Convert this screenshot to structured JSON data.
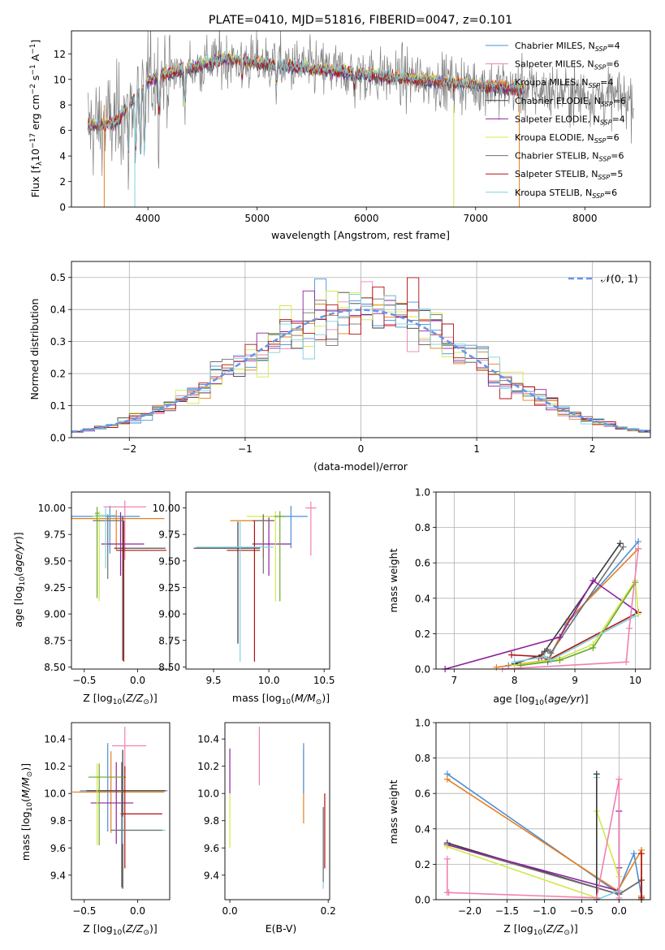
{
  "chart_data": [
    {
      "type": "line",
      "title": "PLATE=0410, MJD=51816, FIBERID=0047, z=0.101",
      "xlabel": "wavelength [Angstrom, rest frame]",
      "ylabel": "Flux [f_λ 10^-17 erg cm^-2 s^-1 A^-1]",
      "xlim": [
        3300,
        8600
      ],
      "ylim": [
        0,
        13.8
      ],
      "xticks": [
        4000,
        5000,
        6000,
        7000,
        8000
      ],
      "yticks": [
        0,
        2,
        4,
        6,
        8,
        10,
        12
      ],
      "grid": false,
      "legend_position": "top-right",
      "data_series": {
        "name": "",
        "x_range": [
          3450,
          8450
        ],
        "color": "#808080"
      },
      "model_series": [
        {
          "name": "Chabrier MILES, N_SSP=4",
          "color": "#4c8fd6"
        },
        {
          "name": "Salpeter MILES, N_SSP=6",
          "color": "#f080b0"
        },
        {
          "name": "Kroupa MILES, N_SSP=4",
          "color": "#e77f1d"
        },
        {
          "name": "Chabrier ELODIE, N_SSP=6",
          "color": "#3a3a3a"
        },
        {
          "name": "Salpeter ELODIE, N_SSP=4",
          "color": "#9020a0"
        },
        {
          "name": "Kroupa ELODIE, N_SSP=6",
          "color": "#d4e84a"
        },
        {
          "name": "Chabrier STELIB, N_SSP=6",
          "color": "#707070"
        },
        {
          "name": "Salpeter STELIB, N_SSP=5",
          "color": "#b01010"
        },
        {
          "name": "Kroupa STELIB, N_SSP=6",
          "color": "#80d0e0"
        }
      ]
    },
    {
      "type": "line",
      "title": "",
      "xlabel": "(data-model)/error",
      "ylabel": "Normed distribution",
      "xlim": [
        -2.5,
        2.5
      ],
      "ylim": [
        0,
        0.55
      ],
      "xticks": [
        -2,
        -1,
        0,
        1,
        2
      ],
      "yticks": [
        0.0,
        0.1,
        0.2,
        0.3,
        0.4,
        0.5
      ],
      "grid": true,
      "legend_position": "top-right",
      "reference": {
        "name": "𝒩(0, 1)",
        "color": "#6495ed",
        "mean": 0,
        "sigma": 1
      }
    },
    {
      "type": "scatter",
      "title": "",
      "xlabel": "Z [log10(Z/Z⊙)]",
      "ylabel": "age  [log10(age/yr)]",
      "xlim": [
        -0.62,
        0.3
      ],
      "ylim": [
        8.48,
        10.15
      ],
      "xticks": [
        -0.5,
        0.0
      ],
      "yticks": [
        8.5,
        8.75,
        9.0,
        9.25,
        9.5,
        9.75,
        10.0
      ],
      "error_points": [
        {
          "color": "#4c8fd6",
          "x": -0.26,
          "y": 9.92,
          "xerr": [
            0.54,
            0.28
          ],
          "yerr": [
            0.35,
            0.1
          ]
        },
        {
          "color": "#f080b0",
          "x": -0.12,
          "y": 10.01,
          "xerr": [
            0.2,
            0.2
          ],
          "yerr": [
            0.5,
            0.06
          ]
        },
        {
          "color": "#e77f1d",
          "x": -0.2,
          "y": 9.9,
          "xerr": [
            0.42,
            0.45
          ],
          "yerr": [
            0.3,
            0.08
          ]
        },
        {
          "color": "#3a3a3a",
          "x": -0.14,
          "y": 9.62,
          "xerr": [
            0.08,
            0.4
          ],
          "yerr": [
            1.06,
            0.3
          ]
        },
        {
          "color": "#9020a0",
          "x": -0.16,
          "y": 9.66,
          "xerr": [
            0.18,
            0.22
          ],
          "yerr": [
            0.3,
            0.3
          ]
        },
        {
          "color": "#d4e84a",
          "x": -0.36,
          "y": 9.92,
          "xerr": [
            0.06,
            0.06
          ],
          "yerr": [
            0.8,
            0.05
          ]
        },
        {
          "color": "#707070",
          "x": -0.28,
          "y": 9.88,
          "xerr": [
            0.14,
            0.14
          ],
          "yerr": [
            0.55,
            0.06
          ]
        },
        {
          "color": "#b01010",
          "x": -0.13,
          "y": 9.6,
          "xerr": [
            0.07,
            0.4
          ],
          "yerr": [
            1.05,
            0.28
          ]
        },
        {
          "color": "#80d0e0",
          "x": -0.3,
          "y": 9.93,
          "xerr": [
            0.1,
            0.1
          ],
          "yerr": [
            0.5,
            0.07
          ]
        },
        {
          "color": "#6aa830",
          "x": -0.38,
          "y": 9.95,
          "xerr": [
            0.02,
            0.02
          ],
          "yerr": [
            0.8,
            0.06
          ]
        }
      ]
    },
    {
      "type": "scatter",
      "title": "",
      "xlabel": "mass [log10(M/M⊙)]",
      "ylabel": "",
      "xlim": [
        9.25,
        10.55
      ],
      "ylim": [
        8.48,
        10.15
      ],
      "xticks": [
        9.5,
        10.0,
        10.5
      ],
      "yticks": [
        8.5,
        8.75,
        9.0,
        9.25,
        9.5,
        9.75,
        10.0
      ],
      "error_points": [
        {
          "color": "#4c8fd6",
          "x": 10.2,
          "y": 9.92,
          "xerr": [
            0.2,
            0.15
          ],
          "yerr": [
            0.3,
            0.1
          ]
        },
        {
          "color": "#f080b0",
          "x": 10.38,
          "y": 10.0,
          "xerr": [
            0.05,
            0.05
          ],
          "yerr": [
            0.45,
            0.06
          ]
        },
        {
          "color": "#e77f1d",
          "x": 9.95,
          "y": 9.88,
          "xerr": [
            0.3,
            0.1
          ],
          "yerr": [
            0.35,
            0.06
          ]
        },
        {
          "color": "#3a3a3a",
          "x": 9.72,
          "y": 9.62,
          "xerr": [
            0.4,
            0.2
          ],
          "yerr": [
            0.9,
            0.25
          ]
        },
        {
          "color": "#9020a0",
          "x": 10.0,
          "y": 9.66,
          "xerr": [
            0.15,
            0.2
          ],
          "yerr": [
            0.3,
            0.25
          ]
        },
        {
          "color": "#d4e84a",
          "x": 10.06,
          "y": 9.92,
          "xerr": [
            0.26,
            0.05
          ],
          "yerr": [
            0.8,
            0.05
          ]
        },
        {
          "color": "#707070",
          "x": 9.95,
          "y": 9.88,
          "xerr": [
            0.1,
            0.1
          ],
          "yerr": [
            0.5,
            0.06
          ]
        },
        {
          "color": "#b01010",
          "x": 9.87,
          "y": 9.6,
          "xerr": [
            0.25,
            0.05
          ],
          "yerr": [
            1.05,
            0.28
          ]
        },
        {
          "color": "#80d0e0",
          "x": 9.74,
          "y": 9.63,
          "xerr": [
            0.4,
            0.3
          ],
          "yerr": [
            1.08,
            0.25
          ]
        },
        {
          "color": "#6aa830",
          "x": 10.1,
          "y": 9.92,
          "xerr": [
            0.05,
            0.05
          ],
          "yerr": [
            0.8,
            0.05
          ]
        }
      ]
    },
    {
      "type": "line",
      "title": "",
      "xlabel": "age  [log10(age/yr)]",
      "ylabel": "mass weight",
      "xlim": [
        6.7,
        10.25
      ],
      "ylim": [
        0,
        1.0
      ],
      "xticks": [
        7,
        8,
        9,
        10
      ],
      "yticks": [
        0.0,
        0.2,
        0.4,
        0.6,
        0.8,
        1.0
      ],
      "grid": true,
      "series": [
        {
          "color": "#4c8fd6",
          "x": [
            7.9,
            8.55,
            8.85,
            10.05
          ],
          "y": [
            0.02,
            0.04,
            0.25,
            0.72
          ]
        },
        {
          "color": "#e77f1d",
          "x": [
            7.7,
            8.55,
            8.9,
            10.05
          ],
          "y": [
            0.01,
            0.05,
            0.28,
            0.68
          ]
        },
        {
          "color": "#3a3a3a",
          "x": [
            8.0,
            8.45,
            8.5,
            9.75
          ],
          "y": [
            0.03,
            0.08,
            0.1,
            0.71
          ]
        },
        {
          "color": "#707070",
          "x": [
            8.4,
            8.55,
            8.6,
            9.8
          ],
          "y": [
            0.06,
            0.11,
            0.09,
            0.69
          ]
        },
        {
          "color": "#9020a0",
          "x": [
            6.85,
            8.75,
            9.3,
            10.05
          ],
          "y": [
            0.0,
            0.18,
            0.5,
            0.32
          ]
        },
        {
          "color": "#b01010",
          "x": [
            7.95,
            8.45,
            8.55,
            10.05
          ],
          "y": [
            0.08,
            0.07,
            0.05,
            0.32
          ]
        },
        {
          "color": "#d4e84a",
          "x": [
            8.0,
            8.75,
            9.3,
            10.0,
            10.05
          ],
          "y": [
            0.02,
            0.06,
            0.14,
            0.5,
            0.31
          ]
        },
        {
          "color": "#6aa830",
          "x": [
            8.1,
            8.75,
            9.3,
            10.0
          ],
          "y": [
            0.02,
            0.05,
            0.12,
            0.49
          ]
        },
        {
          "color": "#80d0e0",
          "x": [
            8.0,
            8.5,
            8.6,
            10.0
          ],
          "y": [
            0.04,
            0.07,
            0.05,
            0.3
          ]
        },
        {
          "color": "#f080b0",
          "x": [
            7.8,
            9.85,
            9.9,
            10.05
          ],
          "y": [
            0.0,
            0.04,
            0.23,
            0.68
          ]
        }
      ]
    },
    {
      "type": "scatter",
      "title": "",
      "xlabel": "Z [log10(Z/Z⊙)]",
      "ylabel": "mass [log10(M/M⊙)]",
      "xlim": [
        -0.62,
        0.3
      ],
      "ylim": [
        9.22,
        10.52
      ],
      "xticks": [
        -0.5,
        0.0
      ],
      "yticks": [
        9.4,
        9.6,
        9.8,
        10.0,
        10.2,
        10.4
      ],
      "error_points": [
        {
          "color": "#4c8fd6",
          "x": -0.28,
          "y": 10.02,
          "xerr": [
            0.26,
            0.56
          ],
          "yerr": [
            0.3,
            0.35
          ]
        },
        {
          "color": "#f080b0",
          "x": -0.12,
          "y": 10.35,
          "xerr": [
            0.12,
            0.2
          ],
          "yerr": [
            0.2,
            0.14
          ]
        },
        {
          "color": "#e77f1d",
          "x": -0.25,
          "y": 10.01,
          "xerr": [
            0.36,
            0.5
          ],
          "yerr": [
            0.3,
            0.3
          ]
        },
        {
          "color": "#3a3a3a",
          "x": -0.14,
          "y": 10.02,
          "xerr": [
            0.34,
            0.4
          ],
          "yerr": [
            0.72,
            0.3
          ]
        },
        {
          "color": "#9020a0",
          "x": -0.2,
          "y": 9.93,
          "xerr": [
            0.24,
            0.16
          ],
          "yerr": [
            0.3,
            0.3
          ]
        },
        {
          "color": "#d4e84a",
          "x": -0.38,
          "y": 10.12,
          "xerr": [
            0.08,
            0.25
          ],
          "yerr": [
            0.5,
            0.1
          ]
        },
        {
          "color": "#6aa830",
          "x": -0.36,
          "y": 10.12,
          "xerr": [
            0.1,
            0.25
          ],
          "yerr": [
            0.5,
            0.1
          ]
        },
        {
          "color": "#b01010",
          "x": -0.12,
          "y": 9.85,
          "xerr": [
            0.04,
            0.35
          ],
          "yerr": [
            0.4,
            0.35
          ]
        },
        {
          "color": "#80d0e0",
          "x": -0.14,
          "y": 9.73,
          "xerr": [
            0.08,
            0.4
          ],
          "yerr": [
            0.1,
            0.1
          ]
        },
        {
          "color": "#707070",
          "x": -0.15,
          "y": 9.73,
          "xerr": [
            0.1,
            0.38
          ],
          "yerr": [
            0.42,
            0.5
          ]
        }
      ]
    },
    {
      "type": "scatter",
      "title": "",
      "xlabel": "E(B-V)",
      "ylabel": "",
      "xlim": [
        -0.01,
        0.203
      ],
      "ylim": [
        9.22,
        10.52
      ],
      "xticks": [
        0.0,
        0.2
      ],
      "yticks": [
        9.4,
        9.6,
        9.8,
        10.0,
        10.2,
        10.4
      ],
      "error_points": [
        {
          "color": "#9020a0",
          "x": 0.0,
          "y": 10.2,
          "yerr": [
            0.2,
            0.13
          ]
        },
        {
          "color": "#d4e84a",
          "x": 0.0,
          "y": 9.9,
          "yerr": [
            0.3,
            0.1
          ]
        },
        {
          "color": "#f080b0",
          "x": 0.06,
          "y": 10.28,
          "yerr": [
            0.22,
            0.21
          ]
        },
        {
          "color": "#e77f1d",
          "x": 0.15,
          "y": 10.06,
          "yerr": [
            0.28,
            0.26
          ]
        },
        {
          "color": "#4c8fd6",
          "x": 0.15,
          "y": 10.1,
          "yerr": [
            0.1,
            0.27
          ]
        },
        {
          "color": "#80d0e0",
          "x": 0.19,
          "y": 9.6,
          "yerr": [
            0.3,
            0.3
          ]
        },
        {
          "color": "#707070",
          "x": 0.19,
          "y": 9.65,
          "yerr": [
            0.3,
            0.25
          ]
        },
        {
          "color": "#b01010",
          "x": 0.193,
          "y": 9.72,
          "yerr": [
            0.27,
            0.28
          ]
        }
      ]
    },
    {
      "type": "line",
      "title": "",
      "xlabel": "Z [log10(Z/Z⊙)]",
      "ylabel": "mass weight",
      "xlim": [
        -2.45,
        0.42
      ],
      "ylim": [
        0,
        1.0
      ],
      "xticks": [
        -2.0,
        -1.5,
        -1.0,
        -0.5,
        0.0
      ],
      "yticks": [
        0.0,
        0.2,
        0.4,
        0.6,
        0.8,
        1.0
      ],
      "grid": true,
      "series": [
        {
          "color": "#4c8fd6",
          "x": [
            -2.3,
            -0.02,
            0.2,
            0.3
          ],
          "y": [
            0.71,
            0.04,
            0.26,
            0.02
          ]
        },
        {
          "color": "#e77f1d",
          "x": [
            -2.3,
            -0.02,
            0.3,
            0.3
          ],
          "y": [
            0.68,
            0.05,
            0.28,
            0.02
          ]
        },
        {
          "color": "#3a3a3a",
          "x": [
            -2.3,
            0.0,
            0.3,
            0.3
          ],
          "y": [
            0.32,
            0.03,
            0.11,
            0.0
          ]
        },
        {
          "color": "#707070",
          "x": [
            -2.3,
            0.0,
            0.3,
            0.3
          ],
          "y": [
            0.31,
            0.03,
            0.11,
            0.01
          ]
        },
        {
          "color": "#9020a0",
          "x": [
            -2.3,
            0.0,
            0.0,
            0.0
          ],
          "y": [
            0.31,
            0.05,
            0.5,
            0.18
          ]
        },
        {
          "color": "#d4e84a",
          "x": [
            -2.3,
            -0.3,
            -0.3,
            0.0
          ],
          "y": [
            0.3,
            0.01,
            0.5,
            0.13
          ]
        },
        {
          "color": "#80d0e0",
          "x": [
            -0.3,
            -0.3,
            0.0,
            0.0
          ],
          "y": [
            0.69,
            0.0,
            0.05,
            0.0
          ]
        },
        {
          "color": "#3a3a3a",
          "x": [
            -0.3,
            -0.3
          ],
          "y": [
            0.71,
            0.0
          ]
        },
        {
          "color": "#b01010",
          "x": [
            0.3,
            0.3
          ],
          "y": [
            0.26,
            0.01
          ]
        },
        {
          "color": "#f080b0",
          "x": [
            -2.3,
            -2.3,
            -2.28,
            -0.3,
            0.0,
            0.0
          ],
          "y": [
            0.23,
            0.04,
            0.04,
            0.01,
            0.68,
            0.01
          ]
        }
      ]
    }
  ]
}
